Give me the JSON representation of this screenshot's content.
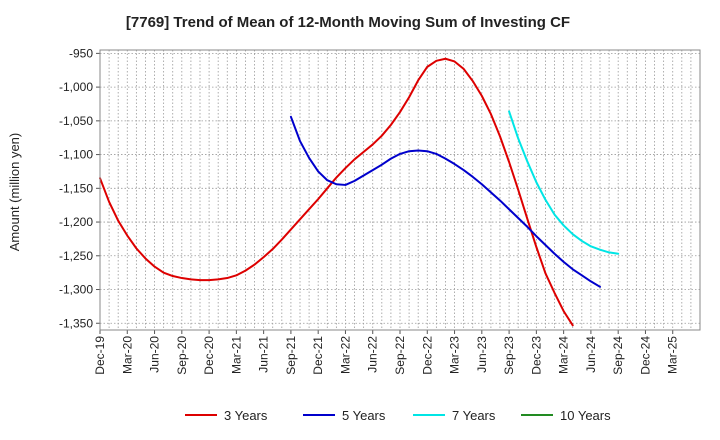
{
  "chart_data": {
    "type": "line",
    "title": "[7769]  Trend of Mean of 12-Month Moving Sum of Investing CF",
    "ylabel": "Amount (million yen)",
    "xlabel": "",
    "ylim": [
      -1360,
      -945
    ],
    "y_ticks": [
      -950,
      -1000,
      -1050,
      -1100,
      -1150,
      -1200,
      -1250,
      -1300,
      -1350
    ],
    "y_tick_labels": [
      "-950",
      "-1,000",
      "-1,050",
      "-1,100",
      "-1,150",
      "-1,200",
      "-1,250",
      "-1,300",
      "-1,350"
    ],
    "x_start": "Dec-19",
    "x_tick_labels": [
      "Dec-19",
      "Mar-20",
      "Jun-20",
      "Sep-20",
      "Dec-20",
      "Mar-21",
      "Jun-21",
      "Sep-21",
      "Dec-21",
      "Mar-22",
      "Jun-22",
      "Sep-22",
      "Dec-22",
      "Mar-23",
      "Jun-23",
      "Sep-23",
      "Dec-23",
      "Mar-24",
      "Jun-24",
      "Sep-24",
      "Dec-24",
      "Mar-25"
    ],
    "grid": true,
    "legend_position": "bottom",
    "series": [
      {
        "name": "3 Years",
        "color": "#dd0000",
        "start_index": 0,
        "values": [
          -1135,
          -1170,
          -1198,
          -1220,
          -1239,
          -1254,
          -1266,
          -1275,
          -1280,
          -1283,
          -1285,
          -1286,
          -1286,
          -1285,
          -1283,
          -1279,
          -1272,
          -1263,
          -1252,
          -1240,
          -1226,
          -1211,
          -1196,
          -1181,
          -1166,
          -1150,
          -1134,
          -1120,
          -1107,
          -1096,
          -1085,
          -1072,
          -1056,
          -1037,
          -1015,
          -990,
          -970,
          -961,
          -958,
          -962,
          -973,
          -991,
          -1013,
          -1040,
          -1073,
          -1111,
          -1152,
          -1195,
          -1237,
          -1276,
          -1305,
          -1332,
          -1353
        ]
      },
      {
        "name": "5 Years",
        "color": "#0000cc",
        "start_index": 21,
        "values": [
          -1044,
          -1080,
          -1105,
          -1125,
          -1138,
          -1144,
          -1145,
          -1139,
          -1131,
          -1123,
          -1115,
          -1106,
          -1099,
          -1095,
          -1094,
          -1095,
          -1099,
          -1106,
          -1114,
          -1123,
          -1133,
          -1144,
          -1156,
          -1168,
          -1181,
          -1194,
          -1207,
          -1221,
          -1234,
          -1247,
          -1259,
          -1270,
          -1279,
          -1288,
          -1296
        ]
      },
      {
        "name": "7 Years",
        "color": "#00e5e5",
        "start_index": 45,
        "values": [
          -1036,
          -1076,
          -1110,
          -1141,
          -1167,
          -1189,
          -1205,
          -1218,
          -1228,
          -1236,
          -1241,
          -1245,
          -1247
        ]
      },
      {
        "name": "10 Years",
        "color": "#228b22",
        "start_index": 0,
        "values": []
      }
    ]
  }
}
